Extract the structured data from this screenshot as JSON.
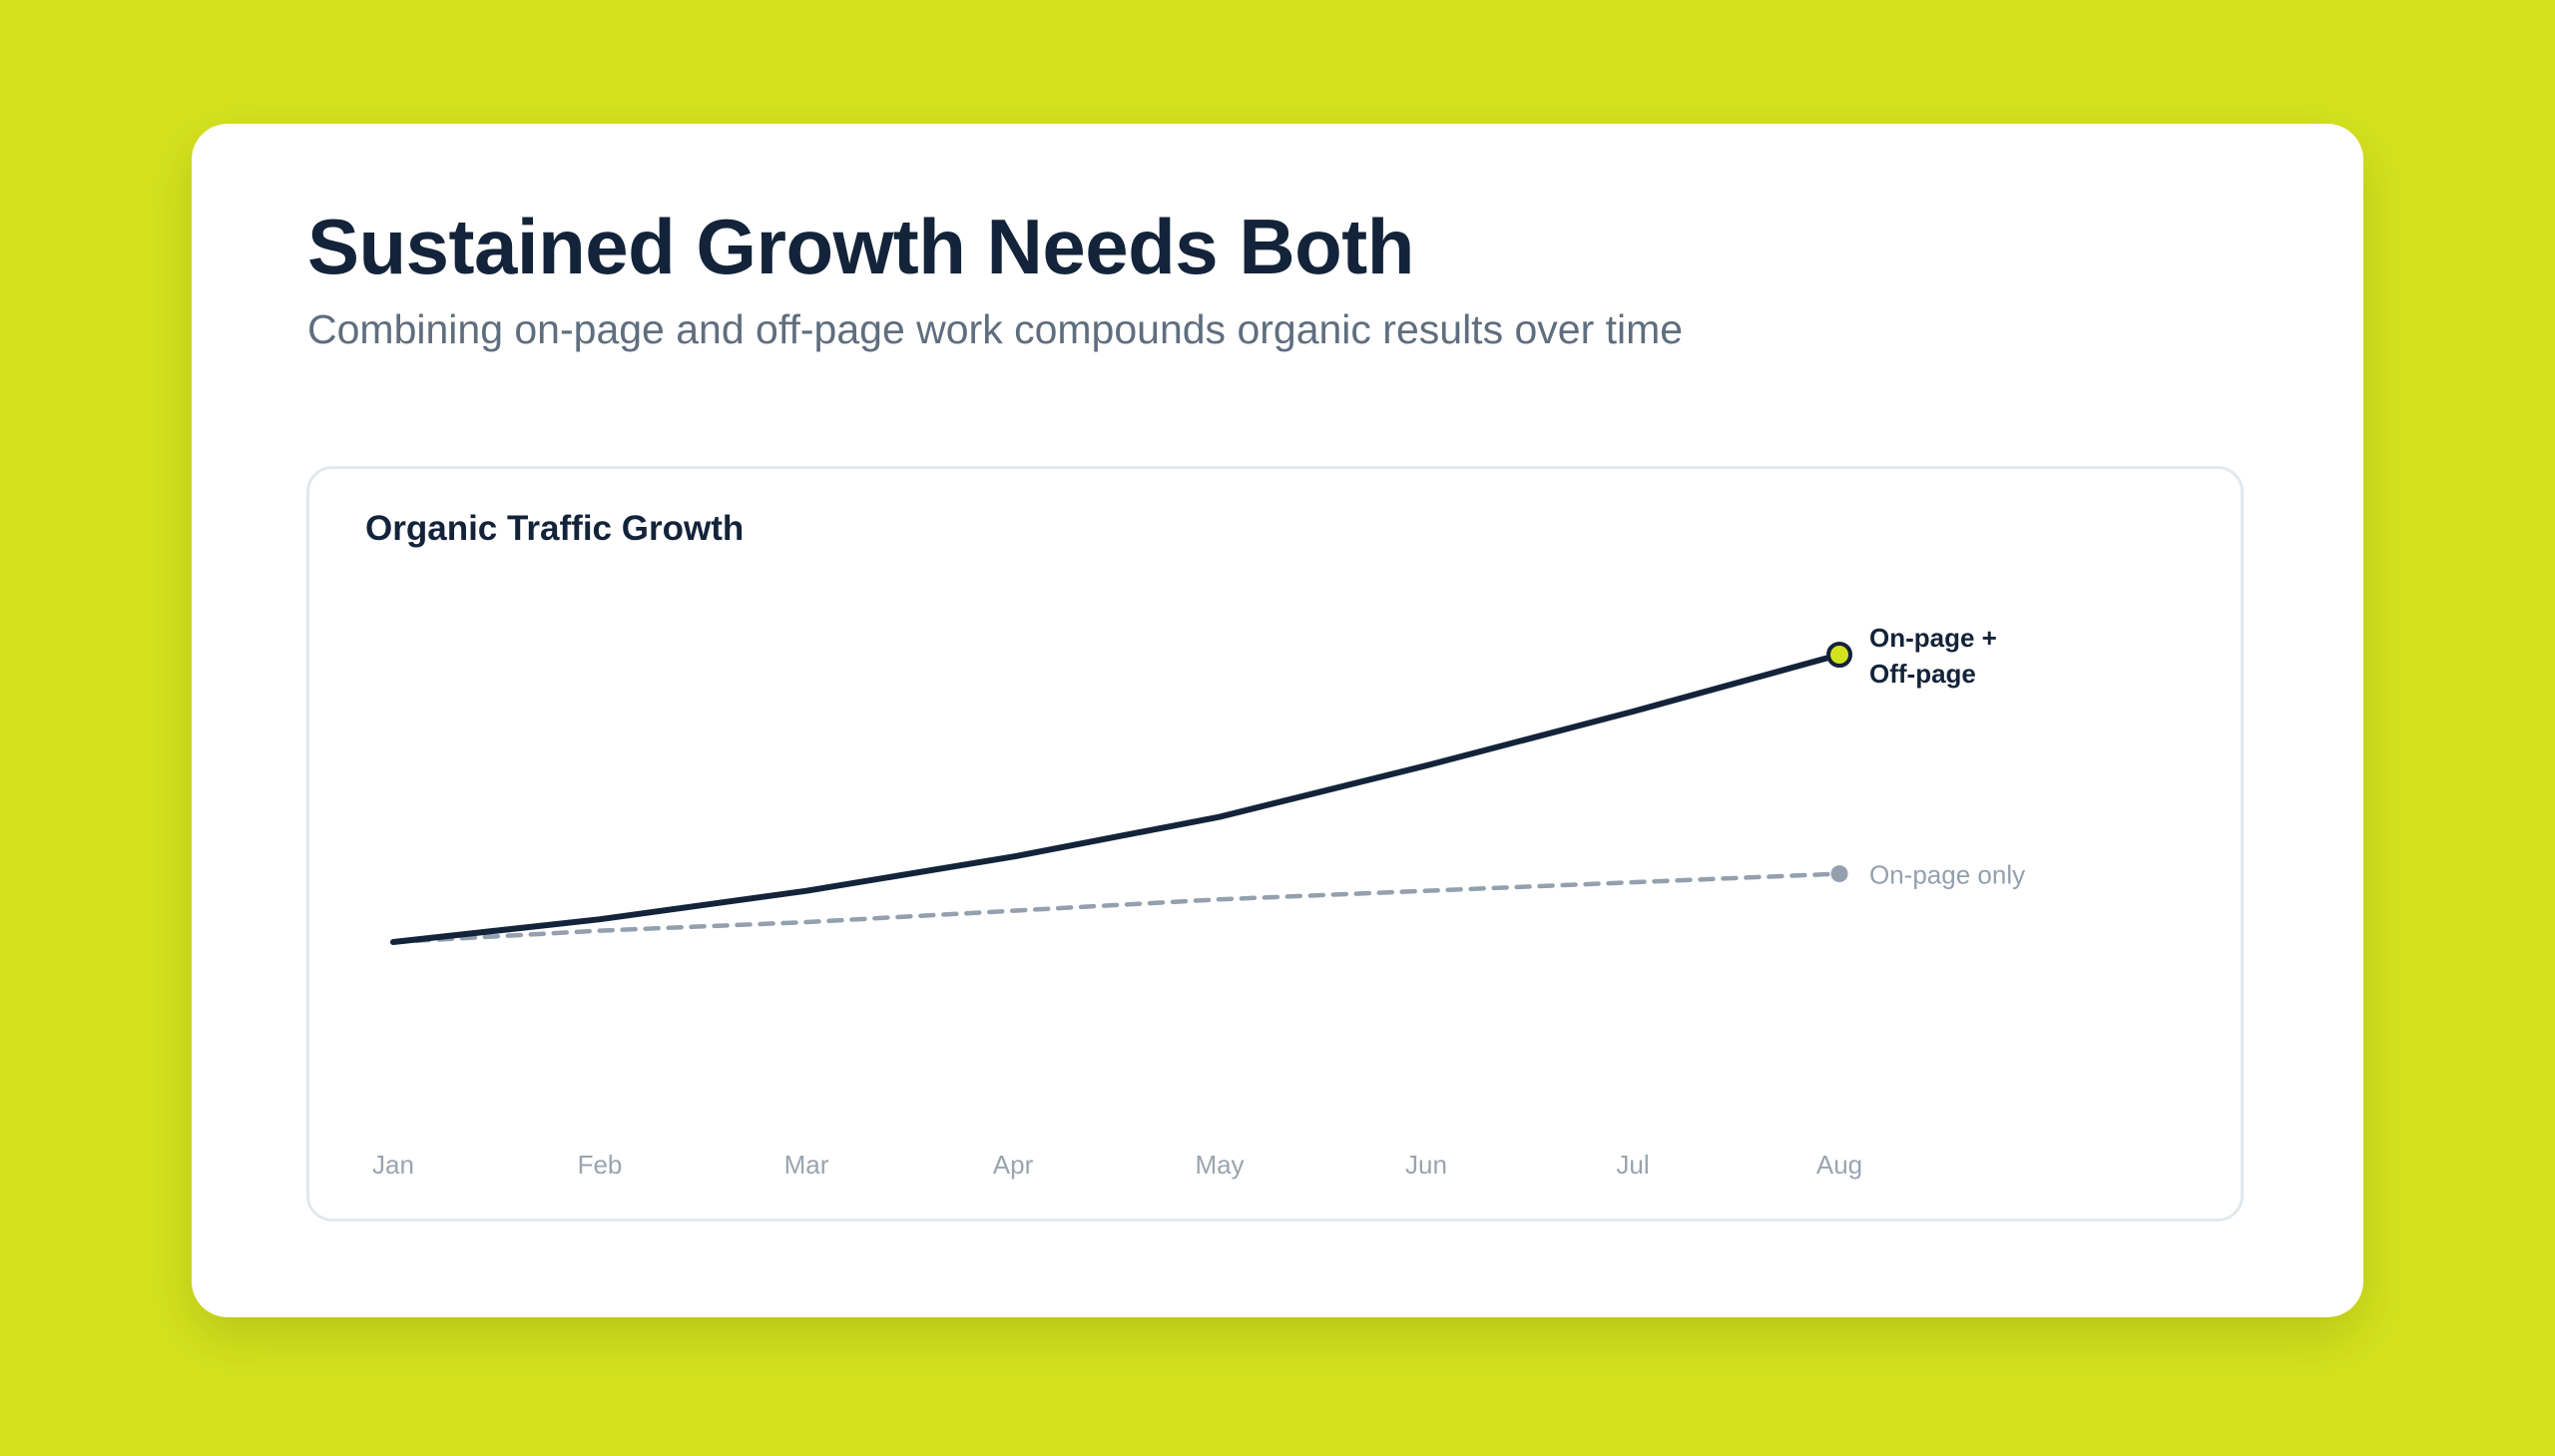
{
  "header": {
    "title": "Sustained Growth Needs Both",
    "subtitle": "Combining on-page and off-page work compounds organic results over time"
  },
  "colors": {
    "background": "#d4e21e",
    "card": "#ffffff",
    "primary_line": "#13233a",
    "secondary_line": "#94a0ae",
    "accent_marker": "#d4e21e",
    "axis_label": "#9aa4b0"
  },
  "chart_data": {
    "type": "line",
    "title": "Organic Traffic Growth",
    "xlabel": "",
    "ylabel": "",
    "grid": false,
    "categories": [
      "Jan",
      "Feb",
      "Mar",
      "Apr",
      "May",
      "Jun",
      "Jul",
      "Aug"
    ],
    "ylim": [
      0,
      100
    ],
    "series": [
      {
        "name": "On-page + Off-page",
        "label_lines": [
          "On-page +",
          "Off-page"
        ],
        "style": "solid",
        "values": [
          10,
          18,
          28,
          40,
          54,
          72,
          91,
          111
        ]
      },
      {
        "name": "On-page only",
        "label_lines": [
          "On-page only"
        ],
        "style": "dashed",
        "values": [
          10,
          14,
          17,
          21,
          25,
          28,
          31,
          34
        ]
      }
    ]
  }
}
